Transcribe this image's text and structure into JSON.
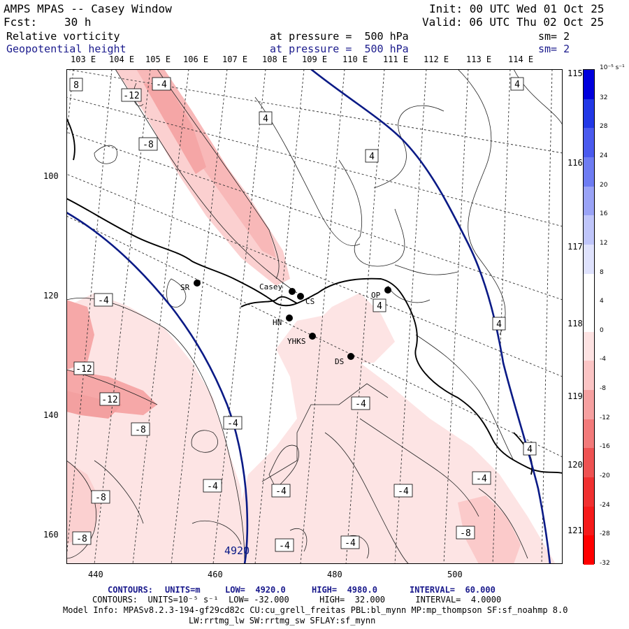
{
  "header": {
    "title": "AMPS MPAS -- Casey Window",
    "init": "Init: 00 UTC Wed 01 Oct 25",
    "fcst_label": "Fcst:",
    "fcst_value": "30 h",
    "valid": "Valid: 06 UTC Thu 02 Oct 25",
    "field1": "Relative vorticity",
    "field1_level": "at pressure =  500 hPa",
    "field1_sm": "sm= 2",
    "field2": "Geopotential height",
    "field2_level": "at pressure =  500 hPa",
    "field2_sm": "sm= 2"
  },
  "map": {
    "top_lon_labels": [
      "103 E",
      "104 E",
      "105 E",
      "106 E",
      "107 E",
      "108 E",
      "109 E",
      "110 E",
      "111 E",
      "112 E",
      "113 E",
      "114 E"
    ],
    "right_lon_labels": [
      "115 E",
      "116 E",
      "117 E",
      "118 E",
      "119 E",
      "120 E",
      "121 E"
    ],
    "x_ticks": [
      "440",
      "460",
      "480",
      "500"
    ],
    "y_ticks": [
      "100",
      "120",
      "140",
      "160"
    ],
    "height_contour_label": "4920",
    "vort_labels": [
      {
        "text": "8"
      },
      {
        "text": "-12"
      },
      {
        "text": "-4"
      },
      {
        "text": "-8"
      },
      {
        "text": "4"
      },
      {
        "text": "4"
      },
      {
        "text": "4"
      },
      {
        "text": "-4"
      },
      {
        "text": "-12"
      },
      {
        "text": "-12"
      },
      {
        "text": "-8"
      },
      {
        "text": "4"
      },
      {
        "text": "4"
      },
      {
        "text": "-4"
      },
      {
        "text": "-4"
      },
      {
        "text": "-4"
      },
      {
        "text": "-8"
      },
      {
        "text": "-4"
      },
      {
        "text": "-4"
      },
      {
        "text": "-4"
      },
      {
        "text": "-8"
      },
      {
        "text": "-8"
      },
      {
        "text": "-4"
      },
      {
        "text": "-4"
      },
      {
        "text": "4"
      }
    ],
    "stations": [
      {
        "name": "SR"
      },
      {
        "name": "Casey"
      },
      {
        "name": "CS"
      },
      {
        "name": "HN"
      },
      {
        "name": "YHKS"
      },
      {
        "name": "DS"
      },
      {
        "name": "OP"
      }
    ]
  },
  "colorbar": {
    "units": "10⁻⁵ s⁻¹",
    "labels": [
      "32",
      "28",
      "24",
      "20",
      "16",
      "12",
      "8",
      "4",
      "0",
      "-4",
      "-8",
      "-12",
      "-16",
      "-20",
      "-24",
      "-28",
      "-32"
    ],
    "colors": [
      "#0000dd",
      "#2238e6",
      "#4a5aee",
      "#6e7cf2",
      "#9aa3f6",
      "#bfc5fa",
      "#dfe2fd",
      "#ffffff",
      "#ffffff",
      "#fde2e2",
      "#fbc4c4",
      "#f6a0a0",
      "#f27a7a",
      "#ee5252",
      "#f03030",
      "#f51a1a",
      "#ff0000"
    ]
  },
  "footer": {
    "line1_contours": "CONTOURS:",
    "line1_units": "UNITS=m",
    "line1_low": "LOW=  4920.0",
    "line1_high": "HIGH=  4980.0",
    "line1_interval": "INTERVAL=  60.000",
    "line2": "CONTOURS:  UNITS=10⁻⁵ s⁻¹  LOW= -32.000      HIGH=  32.000      INTERVAL=  4.0000",
    "line3": "Model Info: MPASv8.2.3-194-gf29cd82c CU:cu_grell_freitas PBL:bl_mynn MP:mp_thompson SF:sf_noahmp 8.0",
    "line4": "LW:rrtmg_lw SW:rrtmg_sw SFLAY:sf_mynn"
  }
}
